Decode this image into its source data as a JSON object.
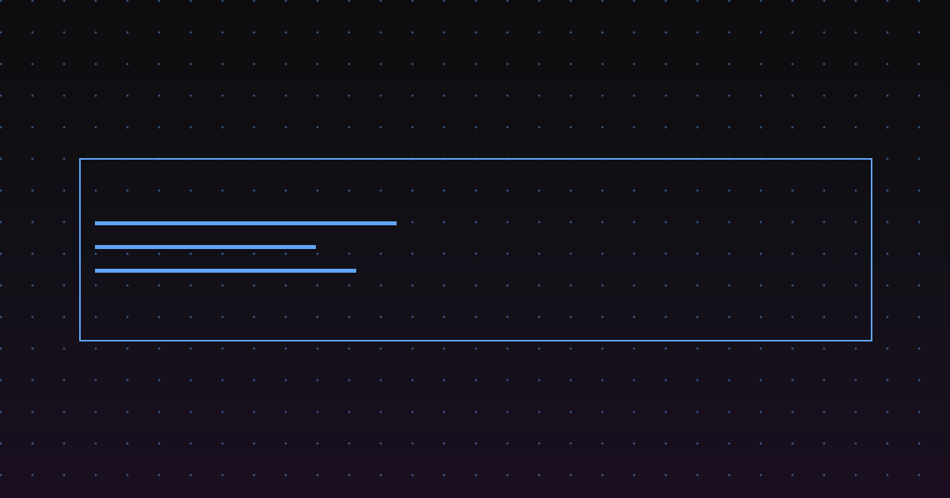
{
  "colors": {
    "accent": "#60a5fa",
    "background_top": "#0d0d0f",
    "background_bottom": "#1a0f20"
  },
  "placeholder_lines": [
    {
      "fill_percent": 75
    },
    {
      "fill_percent": 55
    },
    {
      "fill_percent": 65
    }
  ]
}
